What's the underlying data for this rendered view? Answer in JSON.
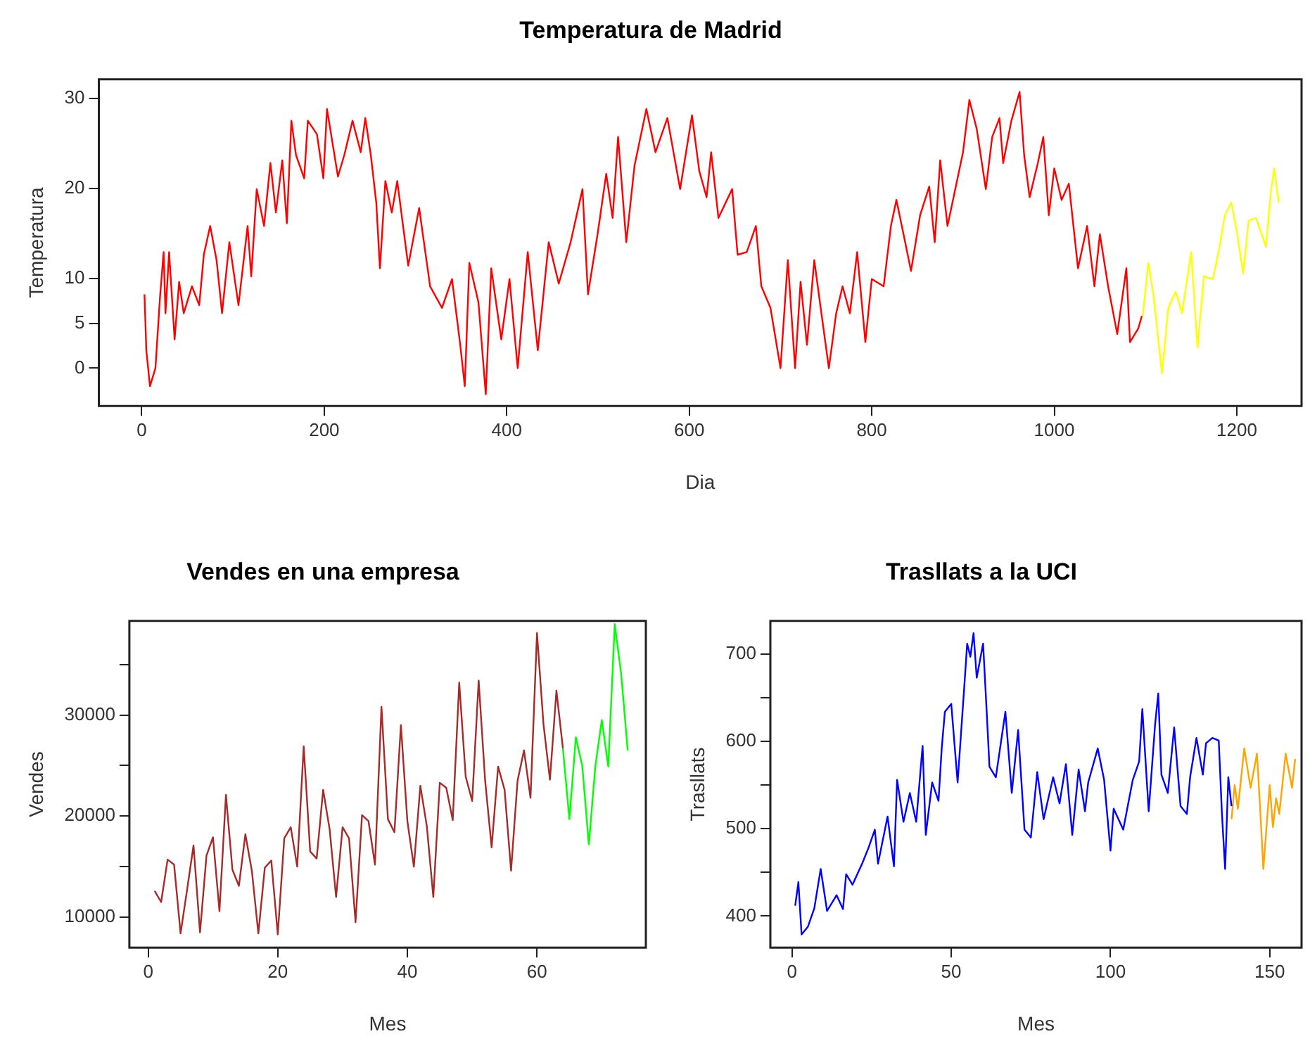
{
  "chart_data": [
    {
      "type": "line",
      "title": "Temperatura de Madrid",
      "xlabel": "Dia",
      "ylabel": "Temperatura",
      "xlim": [
        -47,
        1271
      ],
      "ylim": [
        -4.2,
        32.1
      ],
      "xticks": [
        0,
        200,
        400,
        600,
        800,
        1000,
        1200
      ],
      "yticks": [
        0,
        5,
        10,
        20,
        30
      ],
      "series": [
        {
          "color": "#ff0000",
          "x": [
            3,
            5,
            9,
            15,
            20,
            24,
            26,
            30,
            36,
            41,
            46,
            55,
            63,
            68,
            75,
            82,
            88,
            96,
            106,
            116,
            120,
            126,
            134,
            141,
            147,
            154,
            159,
            164,
            169,
            178,
            182,
            192,
            199,
            203,
            215,
            222,
            231,
            240,
            245,
            251,
            257,
            261,
            267,
            274,
            280,
            292,
            304,
            316,
            329,
            340,
            349,
            354,
            359,
            369,
            377,
            383,
            394,
            403,
            412,
            423,
            434,
            446,
            457,
            470,
            483,
            489,
            500,
            509,
            516,
            522,
            531,
            540,
            553,
            563,
            576,
            590,
            603,
            611,
            619,
            624,
            632,
            647,
            653,
            663,
            673,
            679,
            689,
            700,
            708,
            716,
            722,
            729,
            737,
            744,
            753,
            761,
            768,
            776,
            784,
            793,
            800,
            813,
            821,
            827,
            836,
            843,
            853,
            863,
            869,
            875,
            883,
            894,
            900,
            907,
            915,
            925,
            932,
            940,
            944,
            953,
            962,
            967,
            973,
            982,
            988,
            994,
            1000,
            1008,
            1016,
            1026,
            1036,
            1044,
            1050,
            1059,
            1069,
            1079,
            1083,
            1092,
            1096
          ],
          "values": [
            8.2,
            2.0,
            -2.0,
            0,
            7.9,
            12.9,
            6.1,
            12.9,
            3.2,
            9.6,
            6.1,
            9.1,
            7.0,
            12.6,
            15.8,
            12.0,
            6.1,
            14.0,
            7.0,
            15.8,
            10.2,
            19.9,
            15.8,
            22.8,
            17.3,
            23.1,
            16.1,
            27.5,
            23.7,
            21.1,
            27.5,
            26.0,
            21.1,
            28.8,
            21.3,
            23.7,
            27.5,
            24.0,
            27.8,
            23.7,
            18.4,
            11.1,
            20.8,
            17.3,
            20.8,
            11.4,
            17.8,
            9.1,
            6.7,
            9.9,
            2.6,
            -2.0,
            11.7,
            7.3,
            -2.9,
            11.1,
            3.2,
            9.9,
            0,
            12.9,
            2.0,
            14.0,
            9.4,
            14.0,
            19.9,
            8.2,
            15.2,
            21.6,
            16.7,
            25.7,
            14.0,
            22.5,
            28.8,
            24.0,
            27.8,
            19.9,
            28.1,
            21.9,
            19.0,
            24.0,
            16.7,
            19.9,
            12.6,
            12.9,
            15.8,
            9.1,
            6.7,
            0,
            12.0,
            0,
            9.6,
            2.6,
            12.0,
            6.7,
            0,
            6.1,
            9.1,
            6.1,
            12.9,
            2.9,
            9.9,
            9.1,
            15.8,
            18.7,
            14.3,
            10.8,
            17.0,
            20.2,
            14.0,
            23.1,
            15.8,
            21.1,
            24.0,
            29.8,
            26.6,
            19.9,
            25.7,
            27.8,
            22.8,
            27.5,
            30.7,
            23.7,
            19.0,
            22.8,
            25.7,
            17.0,
            22.2,
            18.7,
            20.5,
            11.1,
            15.8,
            9.1,
            14.9,
            9.1,
            3.8,
            11.1,
            2.9,
            4.4,
            5.8
          ]
        },
        {
          "color": "#ffff00",
          "x": [
            1097,
            1103,
            1109,
            1118,
            1125,
            1133,
            1140,
            1150,
            1157,
            1164,
            1174,
            1181,
            1187,
            1194,
            1200,
            1207,
            1213,
            1221,
            1232,
            1237,
            1241,
            1246
          ],
          "values": [
            5.8,
            11.7,
            7.9,
            -0.6,
            6.7,
            8.5,
            6.1,
            12.9,
            2.3,
            10.2,
            9.9,
            13.5,
            17.0,
            18.4,
            15.2,
            10.5,
            16.4,
            16.7,
            13.5,
            19.3,
            22.2,
            18.4
          ]
        }
      ]
    },
    {
      "type": "line",
      "title": "Vendes en una empresa",
      "xlabel": "Mes",
      "ylabel": "Vendes",
      "xlim": [
        -2.9,
        76.8
      ],
      "ylim": [
        7000,
        39300
      ],
      "xticks": [
        0,
        20,
        40,
        60
      ],
      "yticks": [
        10000,
        {
          "value": 15000,
          "label": null
        },
        20000,
        {
          "value": 25000,
          "label": null
        },
        30000,
        {
          "value": 35000,
          "label": null
        }
      ],
      "series": [
        {
          "color": "#a52a2a",
          "x": [
            1,
            2,
            3,
            4,
            5,
            6,
            7,
            8,
            9,
            10,
            11,
            12,
            13,
            14,
            15,
            16,
            17,
            18,
            19,
            20,
            21,
            22,
            23,
            24,
            25,
            26,
            27,
            28,
            29,
            30,
            31,
            32,
            33,
            34,
            35,
            36,
            37,
            38,
            39,
            40,
            41,
            42,
            43,
            44,
            45,
            46,
            47,
            48,
            49,
            50,
            51,
            52,
            53,
            54,
            55,
            56,
            57,
            58,
            59,
            60,
            61,
            62,
            63,
            64
          ],
          "values": [
            12600,
            11500,
            15700,
            15200,
            8400,
            12700,
            17100,
            8500,
            16100,
            17900,
            10600,
            22100,
            14700,
            13100,
            18200,
            14600,
            8400,
            14900,
            15600,
            8300,
            17800,
            18900,
            15000,
            26900,
            16500,
            15800,
            22600,
            18700,
            12000,
            18900,
            17800,
            9500,
            20100,
            19500,
            15200,
            30800,
            19700,
            18400,
            29000,
            19500,
            15000,
            23000,
            19000,
            12000,
            23300,
            22800,
            19600,
            33200,
            23900,
            21500,
            33400,
            23500,
            16900,
            24900,
            22600,
            14600,
            23500,
            26500,
            21800,
            38100,
            29100,
            23600,
            32400,
            26700
          ]
        },
        {
          "color": "#00ff00",
          "x": [
            64,
            65,
            66,
            67,
            68,
            69,
            70,
            71,
            72,
            73,
            74
          ],
          "values": [
            26700,
            19700,
            27800,
            24900,
            17200,
            24900,
            29500,
            24900,
            39000,
            34000,
            26500
          ]
        }
      ]
    },
    {
      "type": "line",
      "title": "Trasllats a la UCI",
      "xlabel": "Mes",
      "ylabel": "Trasllats",
      "xlim": [
        -6.8,
        160
      ],
      "ylim": [
        364,
        738
      ],
      "xticks": [
        0,
        50,
        100,
        150
      ],
      "yticks": [
        400,
        {
          "value": 450,
          "label": null
        },
        500,
        {
          "value": 550,
          "label": null
        },
        600,
        {
          "value": 650,
          "label": null
        },
        700
      ],
      "series": [
        {
          "color": "#0000ff",
          "x": [
            1,
            2,
            3,
            5,
            7,
            9,
            11,
            14,
            16,
            17,
            19,
            22,
            24,
            26,
            27,
            30,
            32,
            33,
            35,
            37,
            39,
            41,
            42,
            44,
            46,
            47,
            48,
            50,
            52,
            54,
            55,
            56,
            57,
            58,
            60,
            61,
            62,
            64,
            67,
            69,
            71,
            73,
            75,
            77,
            79,
            82,
            84,
            86,
            88,
            90,
            92,
            93,
            96,
            98,
            100,
            101,
            104,
            107,
            109,
            110,
            112,
            114,
            115,
            116,
            118,
            120,
            122,
            124,
            125,
            127,
            129,
            130,
            132,
            134,
            135,
            136,
            137,
            138
          ],
          "values": [
            412,
            439,
            379,
            388,
            409,
            454,
            406,
            424,
            408,
            448,
            436,
            460,
            478,
            499,
            460,
            514,
            457,
            556,
            508,
            541,
            508,
            595,
            493,
            553,
            532,
            592,
            634,
            643,
            553,
            658,
            712,
            697,
            724,
            673,
            712,
            643,
            571,
            559,
            634,
            541,
            613,
            499,
            490,
            565,
            511,
            559,
            529,
            574,
            493,
            568,
            520,
            553,
            592,
            556,
            475,
            523,
            499,
            556,
            577,
            637,
            520,
            619,
            655,
            562,
            541,
            616,
            526,
            517,
            559,
            604,
            562,
            598,
            604,
            601,
            517,
            454,
            559,
            526
          ]
        },
        {
          "color": "#ffa500",
          "x": [
            138,
            139,
            140,
            142,
            144,
            146,
            147,
            148,
            150,
            151,
            152,
            153,
            155,
            157,
            158
          ],
          "values": [
            511,
            550,
            523,
            592,
            547,
            586,
            523,
            454,
            550,
            502,
            535,
            517,
            586,
            547,
            580
          ]
        }
      ]
    }
  ]
}
